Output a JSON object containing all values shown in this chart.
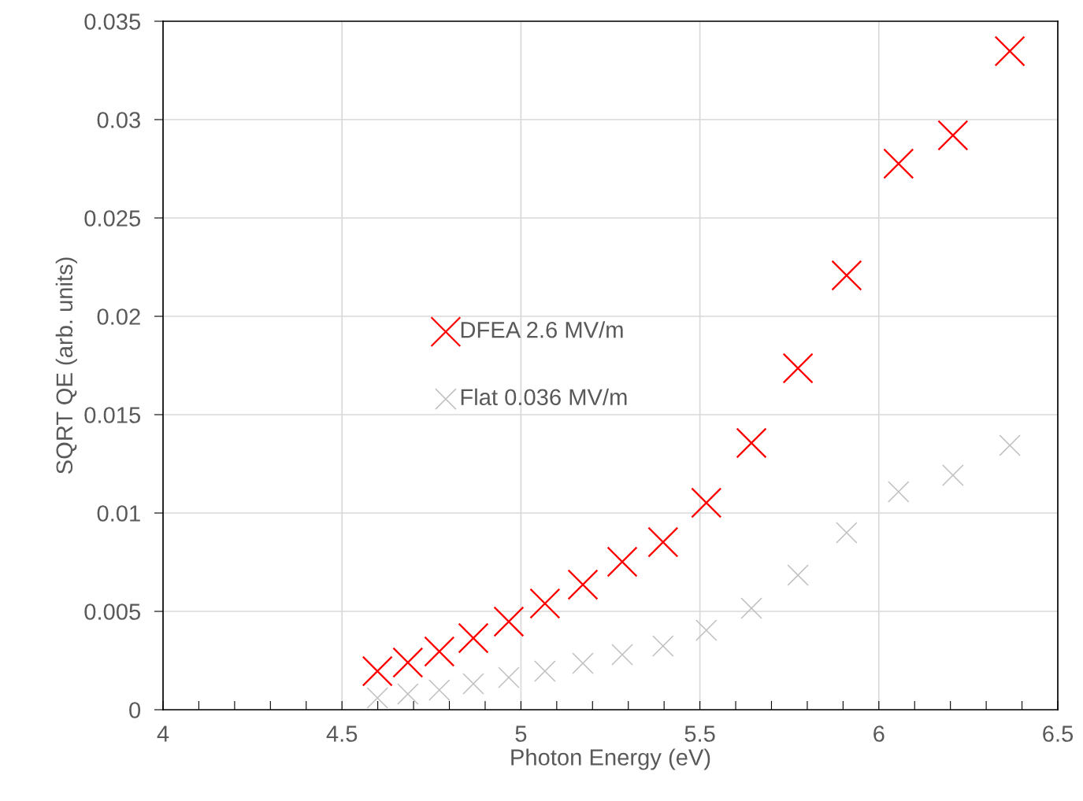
{
  "chart_data": {
    "type": "scatter",
    "xlabel": "Photon Energy (eV)",
    "ylabel": "SQRT QE (arb. units)",
    "x": [
      4.599,
      4.684,
      4.772,
      4.867,
      4.966,
      5.067,
      5.173,
      5.283,
      5.397,
      5.518,
      5.644,
      5.774,
      5.91,
      6.055,
      6.207,
      6.366
    ],
    "series": [
      {
        "name": "DFEA 2.6 MV/m",
        "color": "#ff0000",
        "values": [
          0.00196,
          0.0024,
          0.00296,
          0.00364,
          0.00448,
          0.0054,
          0.00636,
          0.00752,
          0.00852,
          0.01052,
          0.01356,
          0.01736,
          0.02208,
          0.02776,
          0.0292,
          0.03348
        ]
      },
      {
        "name": "Flat 0.036 MV/m",
        "color": "#bfbfbf",
        "values": [
          0.0006,
          0.0008,
          0.001,
          0.00132,
          0.00164,
          0.00196,
          0.00236,
          0.0028,
          0.00324,
          0.00404,
          0.00516,
          0.00684,
          0.009,
          0.01108,
          0.01192,
          0.01344
        ]
      }
    ],
    "xlim": [
      4,
      6.5
    ],
    "xticks": [
      4,
      {
        "value": 4.1,
        "label": null
      },
      {
        "value": 4.2,
        "label": null
      },
      {
        "value": 4.3,
        "label": null
      },
      {
        "value": 4.4,
        "label": null
      },
      4.5,
      {
        "value": 4.6,
        "label": null
      },
      {
        "value": 4.7,
        "label": null
      },
      {
        "value": 4.8,
        "label": null
      },
      {
        "value": 4.9,
        "label": null
      },
      5,
      {
        "value": 5.1,
        "label": null
      },
      {
        "value": 5.2,
        "label": null
      },
      {
        "value": 5.3,
        "label": null
      },
      {
        "value": 5.4,
        "label": null
      },
      5.5,
      {
        "value": 5.6,
        "label": null
      },
      {
        "value": 5.7,
        "label": null
      },
      {
        "value": 5.8,
        "label": null
      },
      {
        "value": 5.9,
        "label": null
      },
      6,
      {
        "value": 6.1,
        "label": null
      },
      {
        "value": 6.2,
        "label": null
      },
      {
        "value": 6.3,
        "label": null
      },
      {
        "value": 6.4,
        "label": null
      },
      6.5
    ],
    "ylim": [
      0,
      0.035
    ],
    "yticks": [
      0,
      0.005,
      0.01,
      0.015,
      0.02,
      0.025,
      0.03,
      0.035
    ],
    "grid": true,
    "legend": "center left",
    "marker": "cross"
  }
}
